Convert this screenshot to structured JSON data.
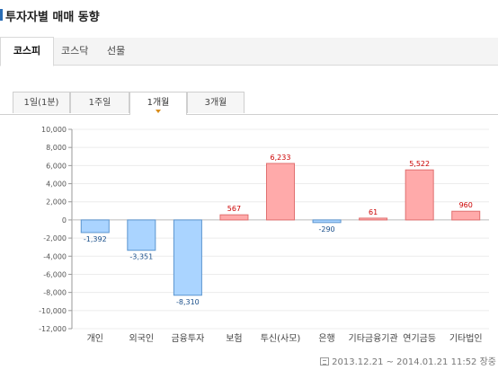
{
  "title": "투자자별 매매 동향",
  "market_tabs": [
    {
      "label": "코스피",
      "active": true
    },
    {
      "label": "코스닥",
      "active": false
    },
    {
      "label": "선물",
      "active": false
    }
  ],
  "period_tabs": [
    {
      "label": "1일(1분)",
      "active": false
    },
    {
      "label": "1주일",
      "active": false
    },
    {
      "label": "1개월",
      "active": true
    },
    {
      "label": "3개월",
      "active": false
    }
  ],
  "chart_data": {
    "type": "bar",
    "categories": [
      "개인",
      "외국인",
      "금융투자",
      "보험",
      "투신(사모)",
      "은행",
      "기타금융기관",
      "연기금등",
      "기타법인"
    ],
    "values": [
      -1392,
      -3351,
      -8310,
      567,
      6233,
      -290,
      61,
      5522,
      960
    ],
    "value_labels": [
      "-1,392",
      "-3,351",
      "-8,310",
      "567",
      "6,233",
      "-290",
      "61",
      "5,522",
      "960"
    ],
    "ylim": [
      -12000,
      10000
    ],
    "yticks": [
      "10,000",
      "8,000",
      "6,000",
      "4,000",
      "2,000",
      "0",
      "-2,000",
      "-4,000",
      "-6,000",
      "-8,000",
      "-10,000",
      "-12,000"
    ],
    "ytick_values": [
      10000,
      8000,
      6000,
      4000,
      2000,
      0,
      -2000,
      -4000,
      -6000,
      -8000,
      -10000,
      -12000
    ],
    "colors": {
      "positive_fill": "#ffaaaa",
      "positive_stroke": "#e07070",
      "positive_label": "#cc0000",
      "negative_fill": "#aad4ff",
      "negative_stroke": "#5b95cf",
      "negative_label": "#1a4f8a"
    }
  },
  "footer": {
    "timestamp": "2013.12.21 ~ 2014.01.21 11:52 장중"
  }
}
